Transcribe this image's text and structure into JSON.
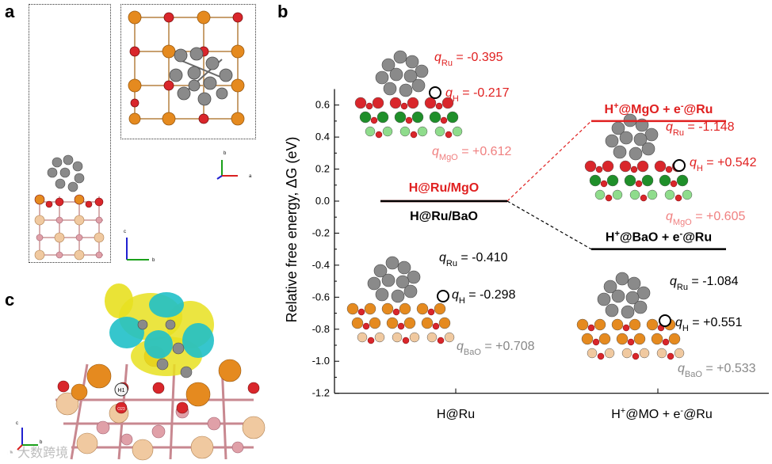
{
  "panels": {
    "a": "a",
    "b": "b",
    "c": "c"
  },
  "axes_labels": {
    "c": "c",
    "b": "b",
    "a": "a"
  },
  "panel_c": {
    "atom_h1": "H1",
    "atom_o": "O23"
  },
  "chart_data": {
    "type": "line",
    "ylabel": "Relative free energy, ΔG (eV)",
    "ylim": [
      -1.2,
      0.7
    ],
    "yticks": [
      0.6,
      0.4,
      0.2,
      0.0,
      -0.2,
      -0.4,
      -0.6,
      -0.8,
      -1.0,
      -1.2
    ],
    "ytick_labels": [
      "0.6",
      "0.4",
      "0.2",
      "0.0",
      "-0.2",
      "-0.4",
      "-0.6",
      "-0.8",
      "-1.0",
      "-1.2"
    ],
    "categories": [
      "H@Ru",
      "H+@MO + e-@Ru"
    ],
    "category_labels": [
      {
        "main": "H@Ru",
        "sup": ""
      },
      {
        "main": "H",
        "sup": "+",
        "rest": "@MO + e",
        "sup2": "-",
        "rest2": "@Ru"
      }
    ],
    "series": [
      {
        "name": "MgO",
        "color": "#e02020",
        "values": [
          0.0,
          0.5
        ],
        "level_labels": [
          "H@Ru/MgO",
          "H+@MgO + e-@Ru"
        ]
      },
      {
        "name": "BaO",
        "color": "#000000",
        "values": [
          0.0,
          -0.3
        ],
        "level_labels": [
          "H@Ru/BaO",
          "H+@BaO + e-@Ru"
        ]
      }
    ],
    "annotations": {
      "mgo_left": {
        "q_ru": "= -0.395",
        "q_h": "= -0.217",
        "q_mo": "= +0.612",
        "mo": "MgO"
      },
      "mgo_right": {
        "q_ru": "= -1.148",
        "q_h": "= +0.542",
        "q_mo": "= +0.605",
        "mo": "MgO"
      },
      "bao_left": {
        "q_ru": "= -0.410",
        "q_h": "= -0.298",
        "q_mo": "= +0.708",
        "mo": "BaO"
      },
      "bao_right": {
        "q_ru": "= -1.084",
        "q_h": "= +0.551",
        "q_mo": "= +0.533",
        "mo": "BaO"
      }
    }
  },
  "colors": {
    "ru": "#8a8a8a",
    "o": "#d9262b",
    "ba": "#e58a1f",
    "bao_light": "#f0c9a0",
    "mg_dark": "#1f8f2a",
    "mg_light": "#8fdc8c",
    "pink": "#e0a0a8",
    "isosurface_yellow": "#e8e020",
    "isosurface_cyan": "#20c0c8"
  },
  "watermark": "大数跨境"
}
